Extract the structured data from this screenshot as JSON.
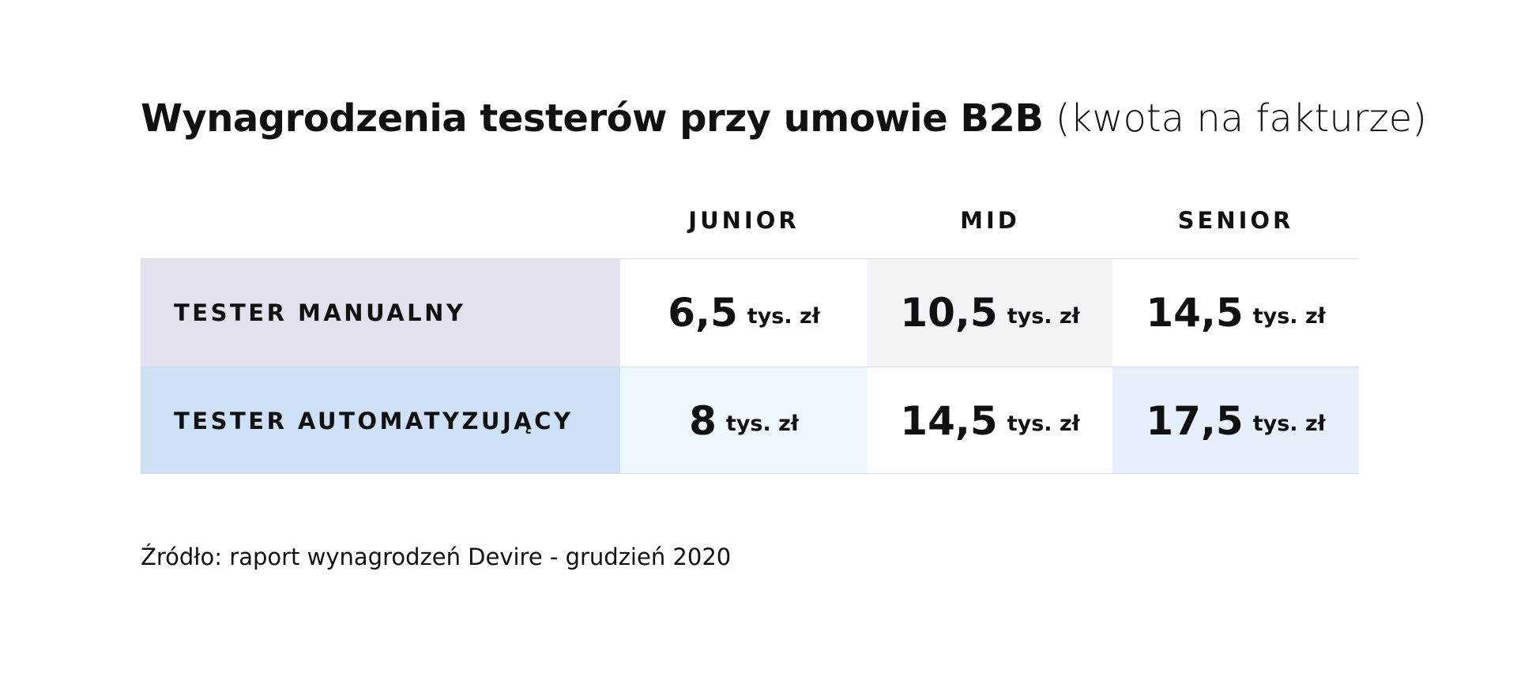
{
  "header": {
    "title": "Wynagrodzenia testerów przy umowie B2B",
    "title_suffix": "(kwota na fakturze)"
  },
  "table": {
    "columns": [
      "JUNIOR",
      "MID",
      "SENIOR"
    ],
    "rows": [
      {
        "label": "TESTER MANUALNY",
        "cells": [
          {
            "value": "6,5",
            "unit": "tys. zł"
          },
          {
            "value": "10,5",
            "unit": "tys. zł"
          },
          {
            "value": "14,5",
            "unit": "tys. zł"
          }
        ]
      },
      {
        "label": "TESTER AUTOMATYZUJĄCY",
        "cells": [
          {
            "value": "8",
            "unit": "tys. zł"
          },
          {
            "value": "14,5",
            "unit": "tys. zł"
          },
          {
            "value": "17,5",
            "unit": "tys. zł"
          }
        ]
      }
    ]
  },
  "footer": {
    "source": "Źródło: raport wynagrodzeń Devire - grudzień 2020"
  }
}
